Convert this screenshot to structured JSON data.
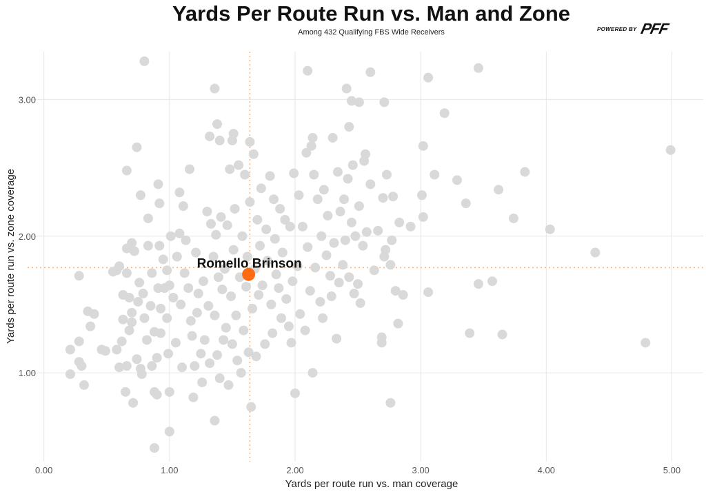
{
  "chart_data": {
    "type": "scatter",
    "title": "Yards Per Route Run vs. Man and Zone",
    "subtitle": "Among 432 Qualifying FBS Wide Receivers",
    "xlabel": "Yards per route run vs. man coverage",
    "ylabel": "Yards per route run vs. zone coverage",
    "xlim": [
      -0.13,
      5.25
    ],
    "ylim": [
      0.35,
      3.35
    ],
    "xticks": [
      "0.00",
      "1.00",
      "2.00",
      "3.00",
      "4.00",
      "5.00"
    ],
    "xtick_values": [
      0,
      1,
      2,
      3,
      4,
      5
    ],
    "yticks": [
      "1.00",
      "2.00",
      "3.00"
    ],
    "ytick_values": [
      1,
      2,
      3
    ],
    "grid": true,
    "reference_lines": {
      "x_mean": 1.64,
      "y_mean": 1.77
    },
    "highlight": {
      "label": "Romello Brinson",
      "x": 1.63,
      "y": 1.72
    },
    "colors": {
      "points": "#d9d9d9",
      "highlight": "#ff6a13",
      "reference": "#f4b183"
    },
    "points": [
      [
        0.8,
        3.28
      ],
      [
        2.1,
        3.21
      ],
      [
        2.6,
        3.2
      ],
      [
        3.46,
        3.23
      ],
      [
        3.06,
        3.16
      ],
      [
        1.36,
        3.08
      ],
      [
        2.41,
        3.08
      ],
      [
        2.45,
        2.99
      ],
      [
        2.51,
        2.98
      ],
      [
        2.71,
        2.98
      ],
      [
        3.19,
        2.9
      ],
      [
        1.38,
        2.82
      ],
      [
        2.43,
        2.8
      ],
      [
        0.74,
        2.65
      ],
      [
        4.99,
        2.63
      ],
      [
        3.02,
        2.66
      ],
      [
        0.66,
        2.48
      ],
      [
        3.83,
        2.47
      ],
      [
        3.62,
        2.34
      ],
      [
        3.11,
        2.45
      ],
      [
        3.29,
        2.41
      ],
      [
        3.36,
        2.24
      ],
      [
        3.74,
        2.13
      ],
      [
        4.03,
        2.05
      ],
      [
        4.39,
        1.88
      ],
      [
        4.79,
        1.22
      ],
      [
        3.39,
        1.29
      ],
      [
        3.65,
        1.28
      ],
      [
        3.57,
        1.67
      ],
      [
        3.46,
        1.65
      ],
      [
        3.06,
        1.59
      ],
      [
        2.82,
        1.36
      ],
      [
        2.69,
        1.26
      ],
      [
        2.76,
        0.78
      ],
      [
        2.0,
        0.85
      ],
      [
        1.65,
        0.75
      ],
      [
        1.36,
        0.65
      ],
      [
        1.0,
        0.57
      ],
      [
        0.88,
        0.45
      ],
      [
        0.21,
        0.99
      ],
      [
        0.32,
        0.91
      ],
      [
        0.21,
        1.17
      ],
      [
        0.28,
        1.71
      ],
      [
        0.71,
        0.78
      ],
      [
        0.65,
        0.86
      ],
      [
        0.91,
        2.38
      ],
      [
        0.92,
        2.24
      ],
      [
        0.77,
        2.3
      ],
      [
        1.08,
        2.32
      ],
      [
        1.16,
        2.49
      ],
      [
        1.11,
        2.22
      ],
      [
        0.83,
        2.13
      ],
      [
        1.32,
        2.73
      ],
      [
        1.4,
        2.7
      ],
      [
        1.5,
        2.7
      ],
      [
        1.64,
        2.69
      ],
      [
        1.51,
        2.75
      ],
      [
        2.14,
        2.72
      ],
      [
        0.28,
        1.23
      ],
      [
        0.28,
        1.08
      ],
      [
        0.3,
        1.05
      ],
      [
        0.35,
        1.45
      ],
      [
        0.37,
        1.34
      ],
      [
        0.4,
        1.43
      ],
      [
        0.46,
        1.17
      ],
      [
        0.49,
        1.16
      ],
      [
        0.55,
        1.74
      ],
      [
        0.58,
        1.75
      ],
      [
        0.6,
        1.78
      ],
      [
        0.58,
        1.17
      ],
      [
        0.6,
        1.04
      ],
      [
        0.62,
        1.23
      ],
      [
        0.63,
        1.57
      ],
      [
        0.63,
        1.39
      ],
      [
        0.66,
        1.73
      ],
      [
        0.66,
        1.91
      ],
      [
        0.68,
        1.55
      ],
      [
        0.68,
        1.31
      ],
      [
        0.66,
        1.05
      ],
      [
        0.7,
        1.37
      ],
      [
        0.7,
        1.44
      ],
      [
        0.72,
        1.89
      ],
      [
        0.7,
        1.95
      ],
      [
        0.74,
        1.1
      ],
      [
        0.75,
        1.52
      ],
      [
        0.76,
        1.66
      ],
      [
        0.77,
        1.03
      ],
      [
        0.78,
        0.99
      ],
      [
        0.79,
        1.58
      ],
      [
        0.8,
        1.4
      ],
      [
        0.82,
        1.24
      ],
      [
        0.83,
        1.93
      ],
      [
        0.85,
        1.49
      ],
      [
        0.86,
        1.73
      ],
      [
        0.86,
        1.05
      ],
      [
        0.88,
        0.86
      ],
      [
        0.9,
        0.84
      ],
      [
        0.88,
        1.3
      ],
      [
        0.9,
        1.11
      ],
      [
        0.91,
        1.62
      ],
      [
        0.92,
        1.93
      ],
      [
        0.93,
        1.47
      ],
      [
        0.93,
        1.29
      ],
      [
        0.95,
        1.83
      ],
      [
        0.96,
        1.62
      ],
      [
        0.98,
        1.75
      ],
      [
        0.98,
        1.4
      ],
      [
        0.99,
        1.14
      ],
      [
        1.0,
        1.64
      ],
      [
        1.0,
        0.86
      ],
      [
        1.01,
        2.0
      ],
      [
        1.03,
        1.55
      ],
      [
        1.05,
        1.22
      ],
      [
        1.06,
        1.85
      ],
      [
        1.08,
        2.02
      ],
      [
        1.09,
        1.5
      ],
      [
        1.1,
        1.04
      ],
      [
        1.12,
        1.73
      ],
      [
        1.13,
        1.97
      ],
      [
        1.15,
        1.62
      ],
      [
        1.17,
        1.38
      ],
      [
        1.18,
        1.27
      ],
      [
        1.19,
        0.82
      ],
      [
        1.2,
        1.05
      ],
      [
        1.21,
        1.88
      ],
      [
        1.22,
        1.44
      ],
      [
        1.23,
        1.58
      ],
      [
        1.25,
        1.14
      ],
      [
        1.26,
        0.93
      ],
      [
        1.27,
        1.67
      ],
      [
        1.28,
        1.24
      ],
      [
        1.3,
        2.18
      ],
      [
        1.31,
        1.49
      ],
      [
        1.32,
        1.07
      ],
      [
        1.33,
        2.09
      ],
      [
        1.35,
        1.85
      ],
      [
        1.36,
        1.42
      ],
      [
        1.37,
        2.01
      ],
      [
        1.38,
        1.13
      ],
      [
        1.39,
        1.7
      ],
      [
        1.4,
        0.96
      ],
      [
        1.41,
        2.14
      ],
      [
        1.42,
        1.61
      ],
      [
        1.43,
        1.24
      ],
      [
        1.44,
        1.76
      ],
      [
        1.45,
        1.33
      ],
      [
        1.46,
        2.08
      ],
      [
        1.47,
        0.91
      ],
      [
        1.48,
        2.49
      ],
      [
        1.49,
        1.56
      ],
      [
        1.5,
        1.21
      ],
      [
        1.51,
        1.9
      ],
      [
        1.52,
        2.2
      ],
      [
        1.53,
        1.42
      ],
      [
        1.54,
        1.09
      ],
      [
        1.55,
        2.52
      ],
      [
        1.56,
        1.7
      ],
      [
        1.57,
        1.0
      ],
      [
        1.58,
        2.0
      ],
      [
        1.59,
        1.31
      ],
      [
        1.6,
        2.45
      ],
      [
        1.61,
        1.63
      ],
      [
        1.62,
        1.85
      ],
      [
        1.63,
        1.15
      ],
      [
        1.64,
        2.25
      ],
      [
        1.66,
        1.47
      ],
      [
        1.67,
        2.6
      ],
      [
        1.68,
        1.76
      ],
      [
        1.69,
        1.12
      ],
      [
        1.7,
        2.12
      ],
      [
        1.71,
        1.57
      ],
      [
        1.72,
        1.93
      ],
      [
        1.73,
        2.35
      ],
      [
        1.74,
        1.64
      ],
      [
        1.76,
        1.21
      ],
      [
        1.77,
        2.05
      ],
      [
        1.78,
        1.82
      ],
      [
        1.8,
        2.44
      ],
      [
        1.81,
        1.5
      ],
      [
        1.82,
        1.29
      ],
      [
        1.83,
        2.27
      ],
      [
        1.84,
        1.98
      ],
      [
        1.85,
        1.72
      ],
      [
        1.87,
        1.62
      ],
      [
        1.88,
        2.2
      ],
      [
        1.89,
        1.4
      ],
      [
        1.9,
        1.88
      ],
      [
        1.92,
        2.12
      ],
      [
        1.93,
        1.54
      ],
      [
        1.95,
        1.34
      ],
      [
        1.96,
        2.07
      ],
      [
        1.97,
        1.22
      ],
      [
        1.98,
        1.67
      ],
      [
        1.99,
        2.46
      ],
      [
        2.02,
        1.78
      ],
      [
        2.03,
        2.3
      ],
      [
        2.04,
        1.43
      ],
      [
        2.06,
        2.07
      ],
      [
        2.08,
        1.31
      ],
      [
        2.09,
        2.61
      ],
      [
        2.1,
        1.92
      ],
      [
        2.12,
        1.6
      ],
      [
        2.13,
        2.66
      ],
      [
        2.14,
        1.0
      ],
      [
        2.15,
        2.45
      ],
      [
        2.16,
        1.77
      ],
      [
        2.18,
        2.27
      ],
      [
        2.2,
        1.52
      ],
      [
        2.21,
        2.0
      ],
      [
        2.22,
        1.4
      ],
      [
        2.23,
        2.34
      ],
      [
        2.25,
        1.86
      ],
      [
        2.26,
        2.15
      ],
      [
        2.28,
        1.71
      ],
      [
        2.29,
        1.56
      ],
      [
        2.3,
        2.72
      ],
      [
        2.31,
        1.95
      ],
      [
        2.33,
        1.25
      ],
      [
        2.34,
        2.47
      ],
      [
        2.35,
        1.66
      ],
      [
        2.36,
        2.18
      ],
      [
        2.38,
        1.79
      ],
      [
        2.39,
        2.27
      ],
      [
        2.4,
        1.97
      ],
      [
        2.42,
        2.42
      ],
      [
        2.43,
        1.7
      ],
      [
        2.45,
        2.1
      ],
      [
        2.46,
        2.52
      ],
      [
        2.47,
        1.58
      ],
      [
        2.48,
        2.0
      ],
      [
        2.5,
        1.65
      ],
      [
        2.51,
        2.22
      ],
      [
        2.52,
        1.51
      ],
      [
        2.54,
        1.93
      ],
      [
        2.55,
        2.55
      ],
      [
        2.57,
        2.03
      ],
      [
        2.6,
        2.38
      ],
      [
        2.63,
        1.75
      ],
      [
        2.66,
        2.04
      ],
      [
        2.7,
        2.28
      ],
      [
        2.71,
        1.85
      ],
      [
        2.72,
        1.9
      ],
      [
        2.73,
        2.45
      ],
      [
        2.76,
        1.79
      ],
      [
        2.77,
        1.97
      ],
      [
        2.78,
        2.29
      ],
      [
        2.8,
        1.6
      ],
      [
        2.83,
        2.1
      ],
      [
        2.86,
        1.57
      ],
      [
        2.92,
        2.07
      ],
      [
        3.01,
        2.3
      ],
      [
        3.02,
        2.14
      ],
      [
        2.69,
        1.22
      ],
      [
        2.56,
        2.6
      ]
    ]
  },
  "logo": {
    "powered_by": "POWERED BY",
    "brand": "PFF"
  }
}
